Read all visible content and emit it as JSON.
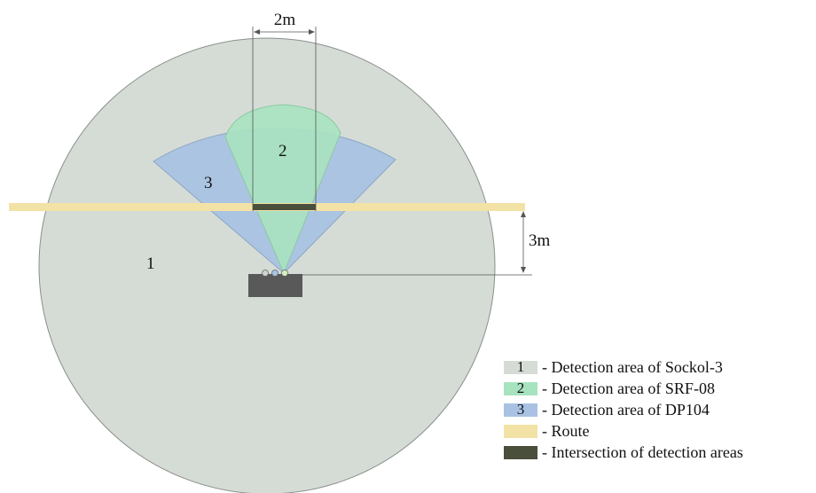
{
  "colors": {
    "sockol_area": "#d5dcd6",
    "srf_area": "#a8e3c0",
    "dp_area": "#a9c2e3",
    "route": "#f3e2a6",
    "intersection": "#4a4f3c",
    "sensor_box": "#595959",
    "dim_line": "#555555"
  },
  "diagram": {
    "dimensions": {
      "width_label": "2m",
      "height_label": "3m"
    },
    "area_labels": {
      "sockol": "1",
      "srf": "2",
      "dp": "3"
    }
  },
  "legend": {
    "items": [
      {
        "num": "1",
        "text": "- Detection area of Sockol-3",
        "color_key": "sockol_area"
      },
      {
        "num": "2",
        "text": "- Detection area of SRF-08",
        "color_key": "srf_area"
      },
      {
        "num": "3",
        "text": "- Detection area of DP104",
        "color_key": "dp_area"
      },
      {
        "num": "",
        "text": "- Route",
        "color_key": "route"
      },
      {
        "num": "",
        "text": "- Intersection of detection areas",
        "color_key": "intersection"
      }
    ]
  }
}
